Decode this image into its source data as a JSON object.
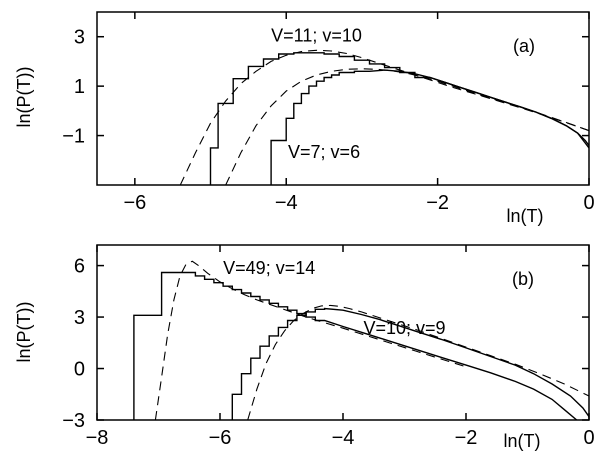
{
  "chart_data": [
    {
      "type": "line",
      "panel_label": "(a)",
      "xlabel": "ln(T)",
      "ylabel": "ln(P(T))",
      "xlim": [
        -6.5,
        0
      ],
      "ylim": [
        -3,
        4
      ],
      "xticks": [
        -6,
        -4,
        -2,
        0
      ],
      "xtick_labels": [
        "−6",
        "−4",
        "−2",
        "0"
      ],
      "yticks": [
        3,
        1,
        -1
      ],
      "ytick_labels": [
        "3",
        "1",
        "−1"
      ],
      "grid": false,
      "annotations": [
        {
          "text": "V=11; v=10",
          "x": -3.6,
          "y": 2.8
        },
        {
          "text": "V=7; v=6",
          "x": -3.5,
          "y": -1.9
        }
      ],
      "series": [
        {
          "style": "step",
          "points": [
            [
              -5.0,
              -3
            ],
            [
              -5.0,
              -1.5
            ],
            [
              -4.9,
              -1.5
            ],
            [
              -4.9,
              0.3
            ],
            [
              -4.7,
              0.3
            ],
            [
              -4.7,
              1.3
            ],
            [
              -4.5,
              1.3
            ],
            [
              -4.5,
              1.8
            ],
            [
              -4.3,
              1.8
            ],
            [
              -4.3,
              2.1
            ],
            [
              -4.1,
              2.1
            ],
            [
              -4.1,
              2.3
            ],
            [
              -3.9,
              2.3
            ],
            [
              -3.9,
              2.35
            ],
            [
              -3.7,
              2.35
            ],
            [
              -3.5,
              2.35
            ],
            [
              -3.5,
              2.3
            ],
            [
              -3.3,
              2.3
            ],
            [
              -3.3,
              2.2
            ],
            [
              -3.1,
              2.2
            ],
            [
              -3.1,
              2.05
            ],
            [
              -2.9,
              2.05
            ],
            [
              -2.9,
              1.9
            ],
            [
              -2.7,
              1.9
            ],
            [
              -2.7,
              1.75
            ],
            [
              -2.5,
              1.75
            ],
            [
              -2.5,
              1.55
            ],
            [
              -2.3,
              1.55
            ],
            [
              -2.3,
              1.35
            ],
            [
              -2.1,
              1.35
            ],
            [
              -1.9,
              1.15
            ],
            [
              -1.7,
              0.95
            ],
            [
              -1.5,
              0.75
            ],
            [
              -1.3,
              0.55
            ],
            [
              -1.1,
              0.35
            ],
            [
              -0.9,
              0.15
            ],
            [
              -0.7,
              -0.05
            ],
            [
              -0.5,
              -0.3
            ],
            [
              -0.3,
              -0.6
            ],
            [
              -0.15,
              -0.9
            ],
            [
              -0.05,
              -1.2
            ],
            [
              0,
              -1.4
            ]
          ]
        },
        {
          "style": "step",
          "points": [
            [
              -4.2,
              -3
            ],
            [
              -4.2,
              -1.2
            ],
            [
              -4.0,
              -1.2
            ],
            [
              -4.0,
              -0.3
            ],
            [
              -3.9,
              -0.3
            ],
            [
              -3.9,
              0.3
            ],
            [
              -3.8,
              0.3
            ],
            [
              -3.8,
              0.7
            ],
            [
              -3.7,
              0.7
            ],
            [
              -3.7,
              1.0
            ],
            [
              -3.6,
              1.0
            ],
            [
              -3.6,
              1.2
            ],
            [
              -3.5,
              1.2
            ],
            [
              -3.5,
              1.35
            ],
            [
              -3.4,
              1.35
            ],
            [
              -3.4,
              1.45
            ],
            [
              -3.3,
              1.45
            ],
            [
              -3.3,
              1.55
            ],
            [
              -3.1,
              1.55
            ],
            [
              -3.1,
              1.6
            ],
            [
              -2.9,
              1.6
            ],
            [
              -2.7,
              1.65
            ],
            [
              -2.5,
              1.6
            ],
            [
              -2.3,
              1.5
            ],
            [
              -2.1,
              1.35
            ],
            [
              -1.9,
              1.15
            ],
            [
              -1.7,
              0.95
            ],
            [
              -1.5,
              0.75
            ],
            [
              -1.3,
              0.55
            ],
            [
              -1.1,
              0.35
            ],
            [
              -0.9,
              0.15
            ],
            [
              -0.7,
              -0.05
            ],
            [
              -0.5,
              -0.3
            ],
            [
              -0.3,
              -0.6
            ],
            [
              -0.15,
              -0.9
            ],
            [
              -0.05,
              -1.3
            ],
            [
              0,
              -1.5
            ]
          ]
        },
        {
          "style": "dashed",
          "points": [
            [
              -5.4,
              -3
            ],
            [
              -5.2,
              -1.7
            ],
            [
              -5.0,
              -0.5
            ],
            [
              -4.8,
              0.4
            ],
            [
              -4.6,
              1.1
            ],
            [
              -4.4,
              1.6
            ],
            [
              -4.2,
              2.0
            ],
            [
              -4.0,
              2.25
            ],
            [
              -3.8,
              2.4
            ],
            [
              -3.6,
              2.45
            ],
            [
              -3.4,
              2.42
            ],
            [
              -3.2,
              2.32
            ],
            [
              -3.0,
              2.15
            ],
            [
              -2.8,
              1.95
            ],
            [
              -2.6,
              1.75
            ],
            [
              -2.4,
              1.55
            ],
            [
              -2.2,
              1.35
            ],
            [
              -2.0,
              1.15
            ],
            [
              -1.8,
              0.95
            ],
            [
              -1.5,
              0.68
            ],
            [
              -1.2,
              0.4
            ],
            [
              -0.9,
              0.12
            ],
            [
              -0.6,
              -0.17
            ],
            [
              -0.3,
              -0.48
            ],
            [
              0,
              -0.8
            ]
          ]
        },
        {
          "style": "dashed",
          "points": [
            [
              -4.8,
              -3
            ],
            [
              -4.6,
              -1.7
            ],
            [
              -4.4,
              -0.6
            ],
            [
              -4.2,
              0.2
            ],
            [
              -4.0,
              0.8
            ],
            [
              -3.8,
              1.2
            ],
            [
              -3.6,
              1.45
            ],
            [
              -3.4,
              1.6
            ],
            [
              -3.2,
              1.68
            ],
            [
              -3.0,
              1.7
            ],
            [
              -2.8,
              1.68
            ],
            [
              -2.6,
              1.62
            ],
            [
              -2.4,
              1.52
            ],
            [
              -2.2,
              1.38
            ],
            [
              -2.0,
              1.2
            ],
            [
              -1.8,
              1.0
            ],
            [
              -1.5,
              0.7
            ],
            [
              -1.2,
              0.42
            ],
            [
              -0.9,
              0.14
            ],
            [
              -0.6,
              -0.16
            ],
            [
              -0.3,
              -0.47
            ],
            [
              0,
              -0.8
            ]
          ]
        }
      ]
    },
    {
      "type": "line",
      "panel_label": "(b)",
      "xlabel": "ln(T)",
      "ylabel": "ln(P(T))",
      "xlim": [
        -8,
        0
      ],
      "ylim": [
        -3,
        7.2
      ],
      "xticks": [
        -8,
        -6,
        -4,
        -2,
        0
      ],
      "xtick_labels": [
        "−8",
        "−6",
        "−4",
        "−2",
        "0"
      ],
      "yticks": [
        6,
        3,
        0,
        -3
      ],
      "ytick_labels": [
        "6",
        "3",
        "0",
        "−3"
      ],
      "grid": false,
      "annotations": [
        {
          "text": "V=49; v=14",
          "x": -5.2,
          "y": 5.5
        },
        {
          "text": "V=10; v=9",
          "x": -3.0,
          "y": 2.0
        }
      ],
      "series": [
        {
          "style": "step",
          "points": [
            [
              -7.4,
              -3
            ],
            [
              -7.4,
              3.1
            ],
            [
              -6.95,
              3.1
            ],
            [
              -6.95,
              5.6
            ],
            [
              -6.4,
              5.6
            ],
            [
              -6.4,
              5.4
            ],
            [
              -6.25,
              5.4
            ],
            [
              -6.25,
              5.2
            ],
            [
              -6.1,
              5.2
            ],
            [
              -6.1,
              5.0
            ],
            [
              -5.95,
              5.0
            ],
            [
              -5.95,
              4.8
            ],
            [
              -5.8,
              4.8
            ],
            [
              -5.8,
              4.6
            ],
            [
              -5.65,
              4.6
            ],
            [
              -5.65,
              4.4
            ],
            [
              -5.5,
              4.4
            ],
            [
              -5.5,
              4.2
            ],
            [
              -5.35,
              4.2
            ],
            [
              -5.35,
              4.0
            ],
            [
              -5.2,
              4.0
            ],
            [
              -5.2,
              3.8
            ],
            [
              -5.05,
              3.8
            ],
            [
              -5.05,
              3.6
            ],
            [
              -4.9,
              3.6
            ],
            [
              -4.9,
              3.4
            ],
            [
              -4.75,
              3.4
            ],
            [
              -4.75,
              3.2
            ],
            [
              -4.6,
              3.2
            ],
            [
              -4.6,
              3.0
            ],
            [
              -4.45,
              3.0
            ],
            [
              -4.45,
              2.8
            ],
            [
              -4.3,
              2.8
            ],
            [
              -4.0,
              2.45
            ],
            [
              -3.6,
              2.0
            ],
            [
              -3.2,
              1.55
            ],
            [
              -2.8,
              1.1
            ],
            [
              -2.4,
              0.65
            ],
            [
              -2.0,
              0.2
            ],
            [
              -1.6,
              -0.25
            ],
            [
              -1.2,
              -0.75
            ],
            [
              -0.9,
              -1.2
            ],
            [
              -0.6,
              -1.8
            ],
            [
              -0.4,
              -2.4
            ],
            [
              -0.2,
              -3.0
            ]
          ]
        },
        {
          "style": "step",
          "points": [
            [
              -5.8,
              -3
            ],
            [
              -5.8,
              -1.5
            ],
            [
              -5.65,
              -1.5
            ],
            [
              -5.65,
              -0.3
            ],
            [
              -5.5,
              -0.3
            ],
            [
              -5.5,
              0.6
            ],
            [
              -5.35,
              0.6
            ],
            [
              -5.35,
              1.3
            ],
            [
              -5.2,
              1.3
            ],
            [
              -5.2,
              1.9
            ],
            [
              -5.05,
              1.9
            ],
            [
              -5.05,
              2.4
            ],
            [
              -4.9,
              2.4
            ],
            [
              -4.9,
              2.8
            ],
            [
              -4.75,
              2.8
            ],
            [
              -4.75,
              3.1
            ],
            [
              -4.6,
              3.1
            ],
            [
              -4.6,
              3.3
            ],
            [
              -4.45,
              3.3
            ],
            [
              -4.45,
              3.45
            ],
            [
              -4.3,
              3.45
            ],
            [
              -4.3,
              3.5
            ],
            [
              -4.0,
              3.4
            ],
            [
              -3.7,
              3.15
            ],
            [
              -3.4,
              2.85
            ],
            [
              -3.1,
              2.5
            ],
            [
              -2.8,
              2.15
            ],
            [
              -2.4,
              1.7
            ],
            [
              -2.0,
              1.2
            ],
            [
              -1.6,
              0.7
            ],
            [
              -1.2,
              0.2
            ],
            [
              -0.9,
              -0.3
            ],
            [
              -0.6,
              -0.9
            ],
            [
              -0.3,
              -1.6
            ],
            [
              -0.1,
              -2.3
            ],
            [
              0,
              -2.8
            ]
          ]
        },
        {
          "style": "dashed",
          "points": [
            [
              -7.05,
              -3
            ],
            [
              -6.95,
              -0.5
            ],
            [
              -6.85,
              2.0
            ],
            [
              -6.75,
              4.0
            ],
            [
              -6.65,
              5.4
            ],
            [
              -6.55,
              6.1
            ],
            [
              -6.45,
              6.25
            ],
            [
              -6.35,
              6.0
            ],
            [
              -6.2,
              5.55
            ],
            [
              -6.0,
              5.05
            ],
            [
              -5.8,
              4.65
            ],
            [
              -5.6,
              4.3
            ],
            [
              -5.4,
              4.0
            ],
            [
              -5.2,
              3.75
            ],
            [
              -5.0,
              3.5
            ],
            [
              -4.8,
              3.25
            ],
            [
              -4.6,
              3.0
            ],
            [
              -4.4,
              2.78
            ],
            [
              -4.0,
              2.35
            ],
            [
              -3.6,
              1.9
            ],
            [
              -3.2,
              1.45
            ],
            [
              -2.8,
              1.0
            ],
            [
              -2.4,
              0.55
            ],
            [
              -2.0,
              0.1
            ]
          ]
        },
        {
          "style": "dashed",
          "points": [
            [
              -5.55,
              -3
            ],
            [
              -5.4,
              -1.2
            ],
            [
              -5.25,
              0.3
            ],
            [
              -5.1,
              1.4
            ],
            [
              -4.95,
              2.2
            ],
            [
              -4.8,
              2.8
            ],
            [
              -4.65,
              3.2
            ],
            [
              -4.5,
              3.5
            ],
            [
              -4.35,
              3.65
            ],
            [
              -4.2,
              3.68
            ],
            [
              -4.05,
              3.62
            ],
            [
              -3.9,
              3.5
            ],
            [
              -3.7,
              3.3
            ],
            [
              -3.4,
              2.95
            ],
            [
              -3.1,
              2.6
            ],
            [
              -2.8,
              2.25
            ],
            [
              -2.4,
              1.75
            ],
            [
              -2.0,
              1.25
            ],
            [
              -1.6,
              0.75
            ],
            [
              -1.2,
              0.25
            ],
            [
              -0.8,
              -0.3
            ],
            [
              -0.4,
              -0.9
            ],
            [
              0,
              -1.6
            ]
          ]
        }
      ]
    }
  ]
}
